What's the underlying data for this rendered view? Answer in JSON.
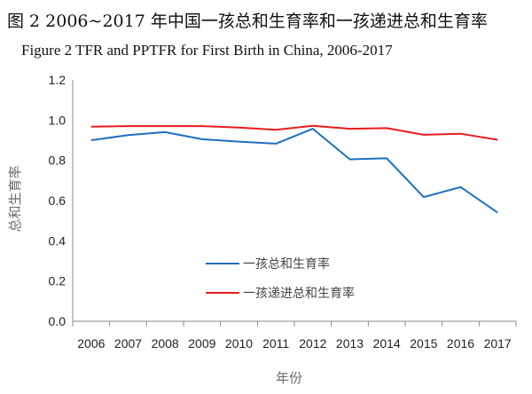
{
  "chart_data": {
    "type": "line",
    "title": "图 2  2006~2017 年中国一孩总和生育率和一孩递进总和生育率",
    "subtitle": "Figure 2 TFR and PPTFR for First Birth in China, 2006-2017",
    "xlabel": "年份",
    "ylabel": "总和生育率",
    "x": [
      "2006",
      "2007",
      "2008",
      "2009",
      "2010",
      "2011",
      "2012",
      "2013",
      "2014",
      "2015",
      "2016",
      "2017"
    ],
    "ylim": [
      0,
      1.2
    ],
    "yticks": [
      "0.0",
      "0.2",
      "0.4",
      "0.6",
      "0.8",
      "1.0",
      "1.2"
    ],
    "grid": false,
    "legend_position": "center",
    "series": [
      {
        "name": "一孩总和生育率",
        "color": "#1f6fbf",
        "values": [
          0.9,
          0.925,
          0.94,
          0.905,
          0.893,
          0.883,
          0.957,
          0.805,
          0.81,
          0.617,
          0.667,
          0.54
        ]
      },
      {
        "name": "一孩递进总和生育率",
        "color": "#e81c1c",
        "values": [
          0.967,
          0.97,
          0.97,
          0.97,
          0.963,
          0.952,
          0.972,
          0.957,
          0.96,
          0.927,
          0.932,
          0.902
        ]
      }
    ]
  }
}
